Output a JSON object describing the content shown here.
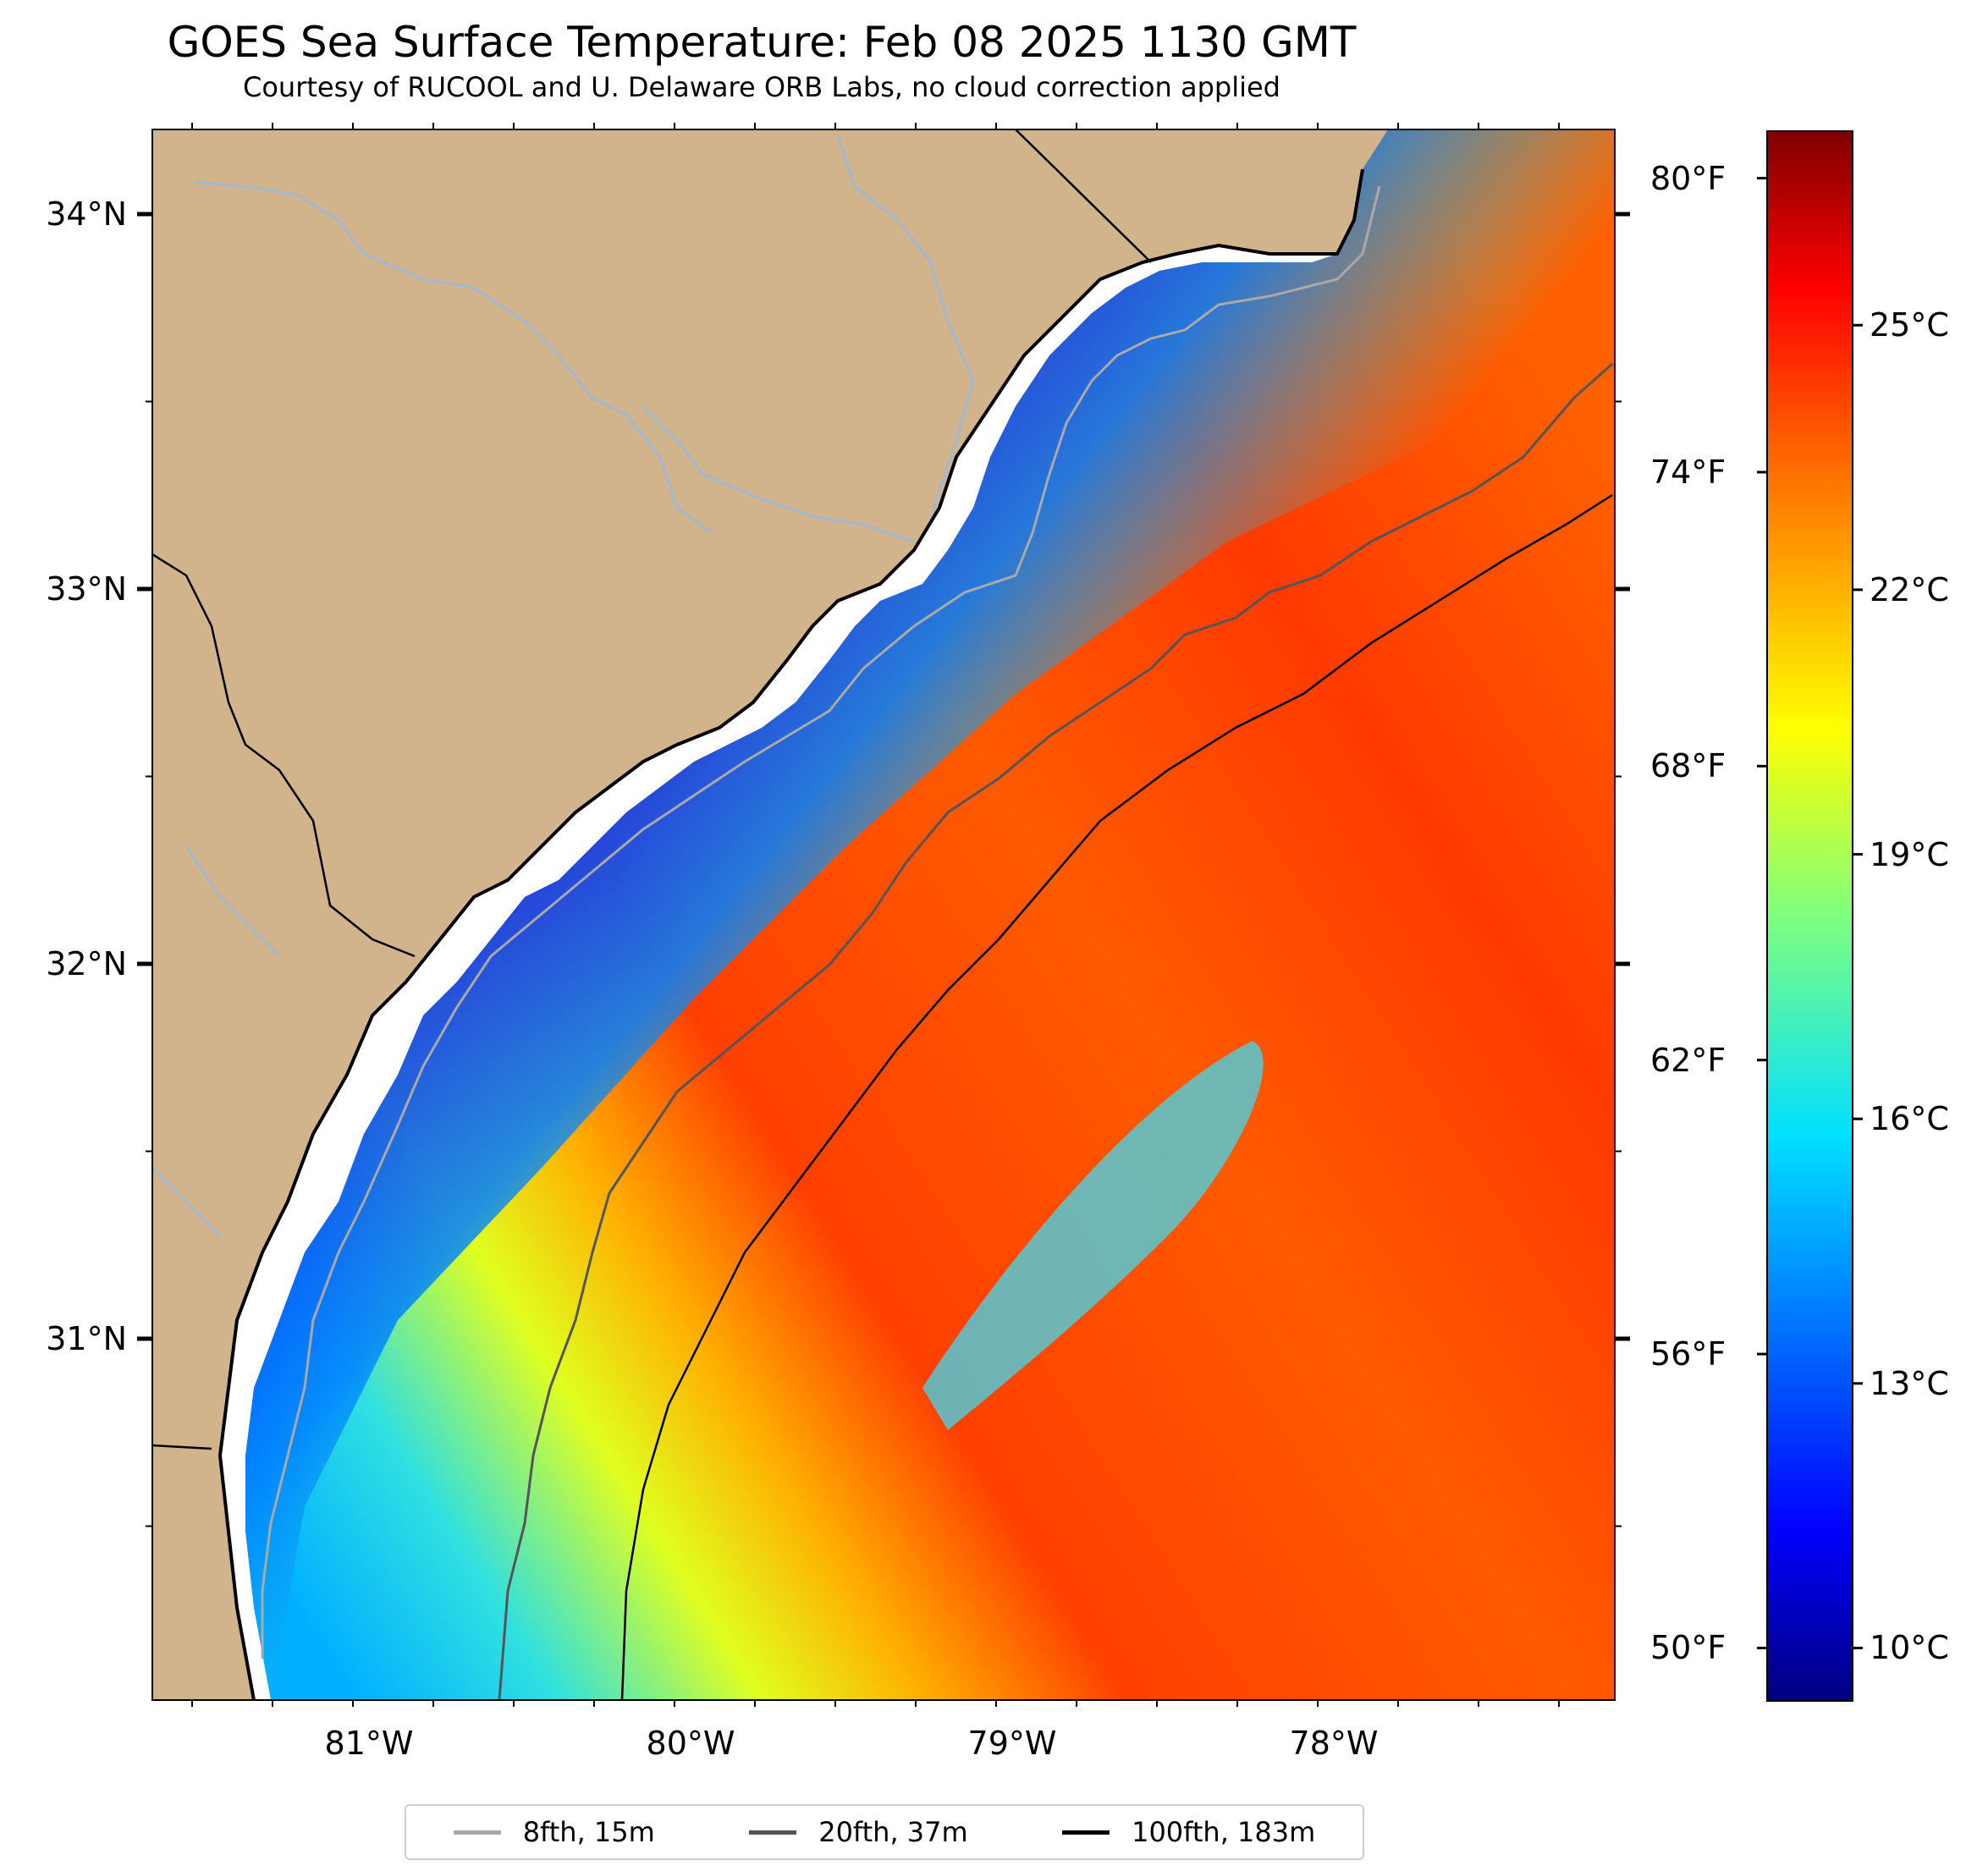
{
  "title": "GOES Sea Surface Temperature: Feb 08 2025 1130 GMT",
  "subtitle": "Courtesy of RUCOOL and U. Delaware ORB Labs, no cloud correction applied",
  "colors": {
    "land": "#d2b48c",
    "coast": "#000000",
    "river": "#a0b8d0",
    "frame": "#000000"
  },
  "lat_labels": [
    {
      "text": "34°N",
      "lat": 34
    },
    {
      "text": "33°N",
      "lat": 33
    },
    {
      "text": "32°N",
      "lat": 32
    },
    {
      "text": "31°N",
      "lat": 31
    }
  ],
  "lon_labels": [
    {
      "text": "81°W",
      "lon": -81
    },
    {
      "text": "80°W",
      "lon": -80
    },
    {
      "text": "79°W",
      "lon": -79
    },
    {
      "text": "78°W",
      "lon": -78
    }
  ],
  "colorbar": {
    "vmin_c": 9.4,
    "vmax_c": 27.2,
    "celsius_labels": [
      {
        "text": "25°C",
        "value": 25
      },
      {
        "text": "22°C",
        "value": 22
      },
      {
        "text": "19°C",
        "value": 19
      },
      {
        "text": "16°C",
        "value": 16
      },
      {
        "text": "13°C",
        "value": 13
      },
      {
        "text": "10°C",
        "value": 10
      }
    ],
    "fahrenheit_labels": [
      {
        "text": "80°F",
        "value": 80
      },
      {
        "text": "74°F",
        "value": 74
      },
      {
        "text": "68°F",
        "value": 68
      },
      {
        "text": "62°F",
        "value": 62
      },
      {
        "text": "56°F",
        "value": 56
      },
      {
        "text": "50°F",
        "value": 50
      }
    ]
  },
  "legend": [
    {
      "label": "8fth, 15m",
      "color": "#a9a9a9"
    },
    {
      "label": "20fth, 37m",
      "color": "#555555"
    },
    {
      "label": "100fth, 183m",
      "color": "#000000"
    }
  ]
}
